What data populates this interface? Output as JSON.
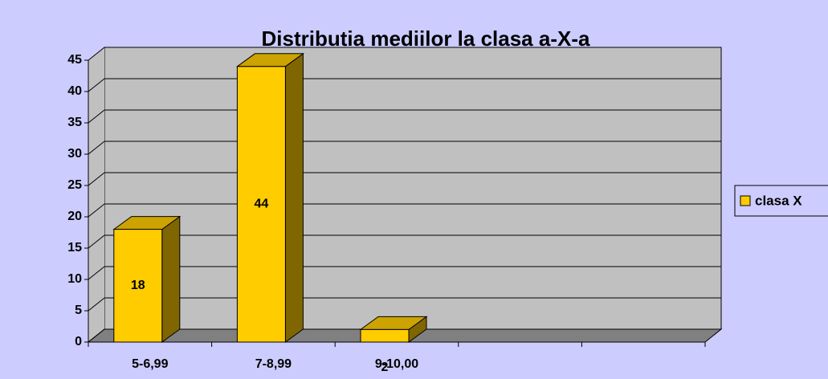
{
  "chart_data": {
    "type": "bar3d",
    "title": "Distributia mediilor la clasa a-X-a",
    "categories": [
      "5-6,99",
      "7-8,99",
      "9-10,00",
      null,
      null
    ],
    "series": [
      {
        "name": "clasa X",
        "color": "#ffcc00",
        "values": [
          18,
          44,
          2,
          null,
          null
        ]
      }
    ],
    "ylim": [
      0,
      45
    ],
    "yticks": [
      0,
      5,
      10,
      15,
      20,
      25,
      30,
      35,
      40,
      45
    ],
    "grid": true,
    "legend": "right"
  }
}
